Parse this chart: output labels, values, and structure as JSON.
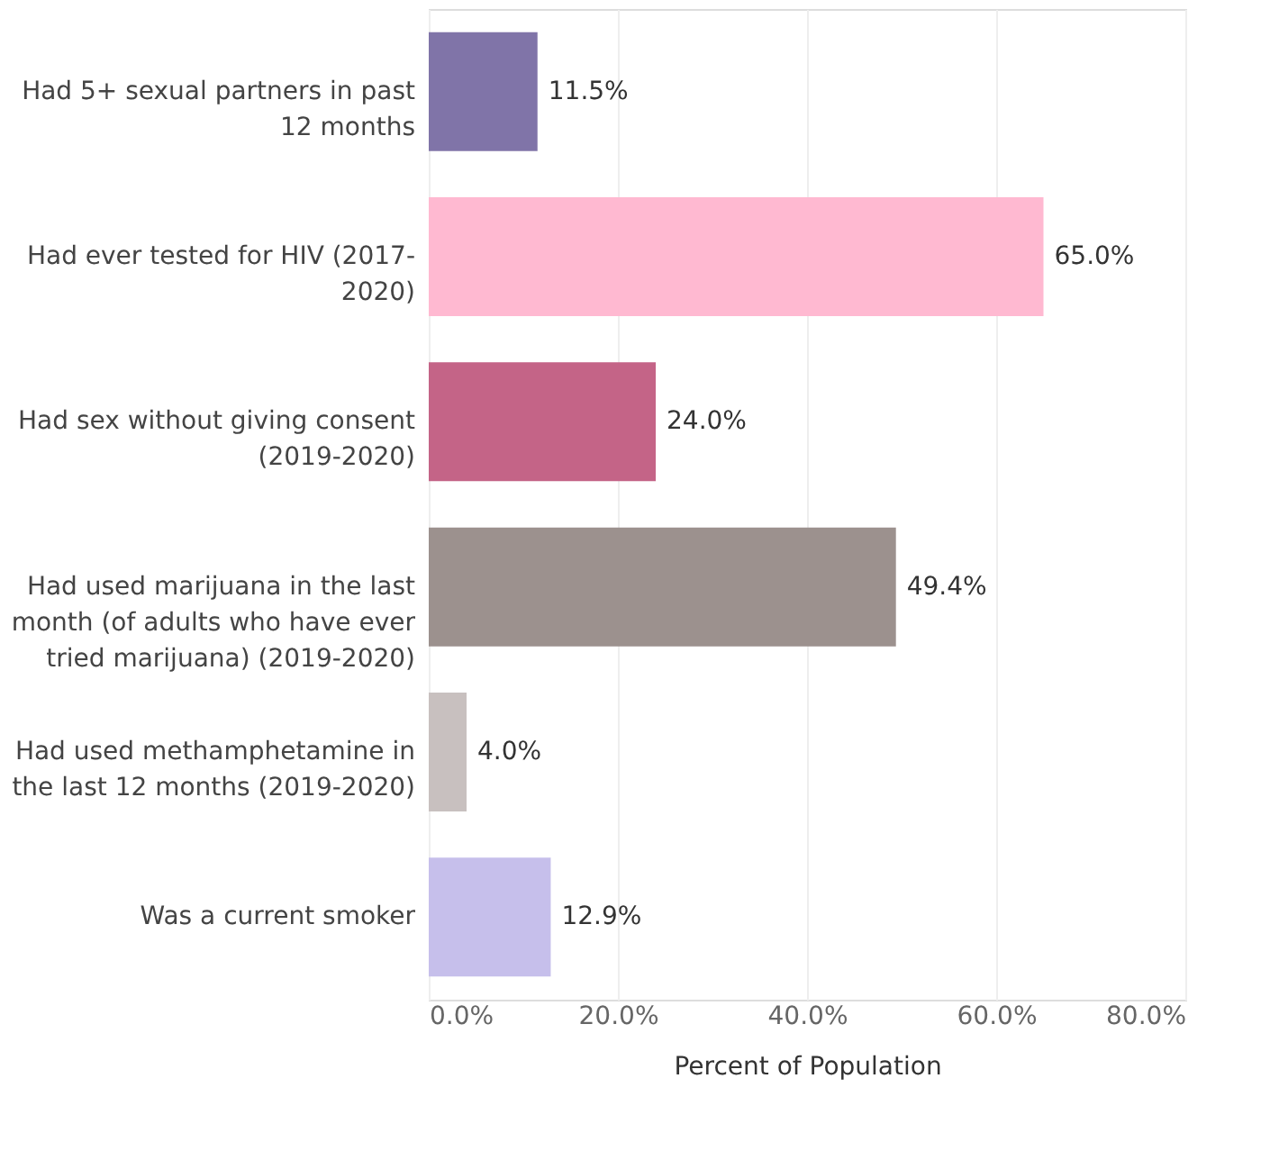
{
  "chart_data": {
    "type": "bar",
    "orientation": "horizontal",
    "xlabel": "Percent of Population",
    "categories": [
      "Had 5+ sexual partners in past 12 months",
      "Had ever tested for HIV (2017-2020)",
      "Had sex without giving consent (2019-2020)",
      "Had used marijuana in the last month (of adults who have ever tried marijuana) (2019-2020)",
      "Had used methamphetamine in the last 12 months (2019-2020)",
      "Was a current smoker"
    ],
    "values": [
      11.5,
      65.0,
      24.0,
      49.4,
      4.0,
      12.9
    ],
    "colors": [
      "#8074a8",
      "#ffb9d1",
      "#c46487",
      "#9c918e",
      "#c8c0bf",
      "#c6bfeb"
    ],
    "value_labels": [
      "11.5%",
      "65.0%",
      "24.0%",
      "49.4%",
      "4.0%",
      "12.9%"
    ],
    "xlim": [
      0,
      80
    ],
    "xticks": [
      {
        "value": 0,
        "label": "0.0%"
      },
      {
        "value": 20,
        "label": "20.0%"
      },
      {
        "value": 40,
        "label": "40.0%"
      },
      {
        "value": 60,
        "label": "60.0%"
      },
      {
        "value": 80,
        "label": "80.0%"
      }
    ],
    "grid": "x"
  }
}
